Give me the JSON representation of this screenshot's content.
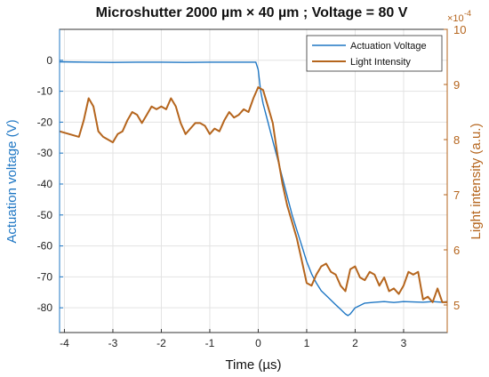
{
  "chart_data": {
    "type": "line",
    "title": "Microshutter 2000 µm × 40 µm ; Voltage = 80 V",
    "xlabel": "Time (µs)",
    "ylabel_left": "Actuation voltage (V)",
    "ylabel_right": "Light intensity (a.u.)",
    "right_exponent_base": "×10",
    "right_exponent_power": "-4",
    "xlim": [
      -4.1,
      3.9
    ],
    "ylim_left": [
      -88,
      10
    ],
    "ylim_right": [
      4.5,
      10
    ],
    "x_ticks": [
      -4,
      -3,
      -2,
      -1,
      0,
      1,
      2,
      3
    ],
    "y_left_ticks": [
      0,
      -10,
      -20,
      -30,
      -40,
      -50,
      -60,
      -70,
      -80
    ],
    "y_right_ticks": [
      5,
      6,
      7,
      8,
      9,
      10
    ],
    "grid": true,
    "legend_position": "top-right",
    "colors": {
      "voltage": "#1f77c4",
      "light": "#b5651d",
      "grid": "#e3e3e3"
    },
    "series": [
      {
        "name": "Actuation Voltage",
        "axis": "left",
        "x": [
          -4.1,
          -3.5,
          -3.0,
          -2.5,
          -2.0,
          -1.5,
          -1.0,
          -0.5,
          -0.05,
          0.0,
          0.05,
          0.1,
          0.2,
          0.3,
          0.4,
          0.5,
          0.6,
          0.7,
          0.8,
          0.9,
          1.0,
          1.1,
          1.2,
          1.3,
          1.4,
          1.5,
          1.6,
          1.7,
          1.8,
          1.85,
          1.9,
          2.0,
          2.2,
          2.4,
          2.6,
          2.8,
          3.0,
          3.2,
          3.4,
          3.6,
          3.8,
          3.9
        ],
        "values": [
          -0.5,
          -0.6,
          -0.7,
          -0.6,
          -0.6,
          -0.7,
          -0.6,
          -0.6,
          -0.6,
          -3.0,
          -10.0,
          -14.0,
          -20.0,
          -26.0,
          -32.0,
          -38.0,
          -44.0,
          -50.0,
          -55.0,
          -60.0,
          -65.0,
          -69.0,
          -72.0,
          -74.5,
          -76.0,
          -77.5,
          -79.0,
          -80.5,
          -82.0,
          -82.5,
          -82.0,
          -80.0,
          -78.5,
          -78.2,
          -78.0,
          -78.3,
          -78.0,
          -78.1,
          -78.2,
          -78.0,
          -78.2,
          -78.0
        ]
      },
      {
        "name": "Light Intensity",
        "axis": "right",
        "x": [
          -4.1,
          -3.9,
          -3.7,
          -3.6,
          -3.5,
          -3.4,
          -3.3,
          -3.2,
          -3.1,
          -3.0,
          -2.9,
          -2.8,
          -2.7,
          -2.6,
          -2.5,
          -2.4,
          -2.3,
          -2.2,
          -2.1,
          -2.0,
          -1.9,
          -1.8,
          -1.7,
          -1.6,
          -1.5,
          -1.4,
          -1.3,
          -1.2,
          -1.1,
          -1.0,
          -0.9,
          -0.8,
          -0.7,
          -0.6,
          -0.5,
          -0.4,
          -0.3,
          -0.2,
          -0.1,
          0.0,
          0.1,
          0.2,
          0.3,
          0.4,
          0.5,
          0.6,
          0.7,
          0.8,
          0.9,
          1.0,
          1.1,
          1.2,
          1.3,
          1.4,
          1.5,
          1.6,
          1.7,
          1.8,
          1.9,
          2.0,
          2.1,
          2.2,
          2.3,
          2.4,
          2.5,
          2.6,
          2.7,
          2.8,
          2.9,
          3.0,
          3.1,
          3.2,
          3.3,
          3.4,
          3.5,
          3.6,
          3.7,
          3.8,
          3.9
        ],
        "values": [
          8.15,
          8.1,
          8.05,
          8.35,
          8.75,
          8.6,
          8.15,
          8.05,
          8.0,
          7.95,
          8.1,
          8.15,
          8.35,
          8.5,
          8.45,
          8.3,
          8.45,
          8.6,
          8.55,
          8.6,
          8.55,
          8.75,
          8.6,
          8.3,
          8.1,
          8.2,
          8.3,
          8.3,
          8.25,
          8.1,
          8.2,
          8.15,
          8.35,
          8.5,
          8.4,
          8.45,
          8.55,
          8.5,
          8.75,
          8.95,
          8.9,
          8.6,
          8.3,
          7.7,
          7.2,
          6.8,
          6.5,
          6.2,
          5.8,
          5.4,
          5.35,
          5.55,
          5.7,
          5.75,
          5.6,
          5.55,
          5.35,
          5.25,
          5.65,
          5.7,
          5.5,
          5.45,
          5.6,
          5.55,
          5.35,
          5.5,
          5.25,
          5.3,
          5.2,
          5.35,
          5.6,
          5.55,
          5.6,
          5.1,
          5.15,
          5.05,
          5.3,
          5.05,
          5.05
        ]
      }
    ]
  }
}
